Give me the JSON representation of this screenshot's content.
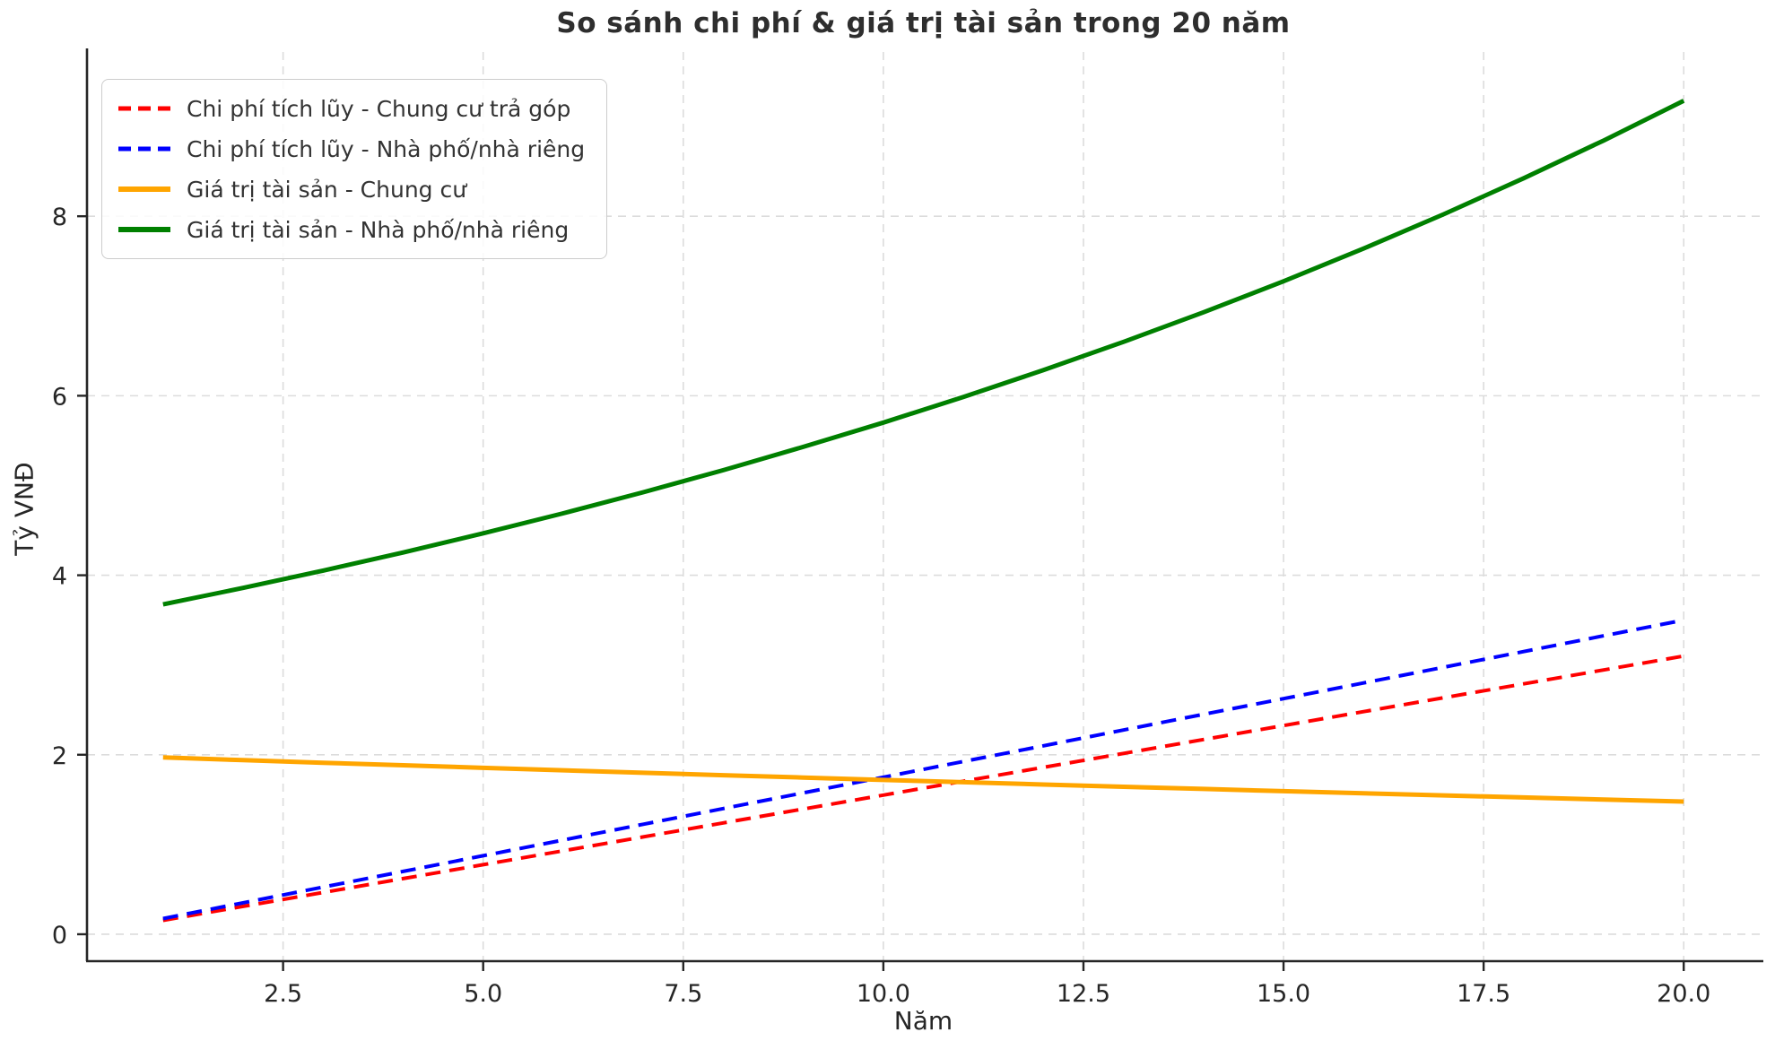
{
  "figure": {
    "background": "#ffffff",
    "grid_color": "#dcdcdc",
    "spine_color": "#262626",
    "tick_label_color": "#262626",
    "title_color": "#2e2e2e"
  },
  "chart_data": {
    "type": "line",
    "title": "So sánh chi phí & giá trị tài sản trong 20 năm",
    "xlabel": "Năm",
    "ylabel": "Tỷ VNĐ",
    "x": [
      1,
      2,
      3,
      4,
      5,
      6,
      7,
      8,
      9,
      10,
      11,
      12,
      13,
      14,
      15,
      16,
      17,
      18,
      19,
      20
    ],
    "xlim": [
      0.05,
      20.95
    ],
    "ylim": [
      -0.3,
      9.83
    ],
    "xticks": [
      2.5,
      5.0,
      7.5,
      10.0,
      12.5,
      15.0,
      17.5,
      20.0
    ],
    "xtick_labels": [
      "2.5",
      "5.0",
      "7.5",
      "10.0",
      "12.5",
      "15.0",
      "17.5",
      "20.0"
    ],
    "yticks": [
      0,
      2,
      4,
      6,
      8
    ],
    "ytick_labels": [
      "0",
      "2",
      "4",
      "6",
      "8"
    ],
    "grid": true,
    "legend_position": "upper-left",
    "series": [
      {
        "name": "Chi phí tích lũy - Chung cư trả góp",
        "color": "#ff0000",
        "style": "dashed",
        "line_width": 4,
        "values": [
          0.155,
          0.31,
          0.465,
          0.62,
          0.775,
          0.93,
          1.085,
          1.24,
          1.395,
          1.55,
          1.705,
          1.86,
          2.015,
          2.17,
          2.325,
          2.48,
          2.635,
          2.79,
          2.945,
          3.1
        ]
      },
      {
        "name": "Chi phí tích lũy - Nhà phố/nhà riêng",
        "color": "#0000ff",
        "style": "dashed",
        "line_width": 4,
        "values": [
          0.175,
          0.35,
          0.525,
          0.7,
          0.875,
          1.05,
          1.225,
          1.4,
          1.575,
          1.75,
          1.925,
          2.1,
          2.275,
          2.45,
          2.625,
          2.8,
          2.975,
          3.15,
          3.325,
          3.5
        ]
      },
      {
        "name": "Giá trị tài sản - Chung cư",
        "color": "#ffa500",
        "style": "solid",
        "line_width": 5,
        "values": [
          1.97,
          1.94,
          1.911,
          1.883,
          1.854,
          1.827,
          1.799,
          1.772,
          1.746,
          1.719,
          1.694,
          1.668,
          1.643,
          1.619,
          1.594,
          1.57,
          1.547,
          1.524,
          1.501,
          1.478
        ]
      },
      {
        "name": "Giá trị tài sản - Nhà phố/nhà riêng",
        "color": "#008000",
        "style": "solid",
        "line_width": 5,
        "values": [
          3.675,
          3.859,
          4.052,
          4.254,
          4.467,
          4.69,
          4.925,
          5.171,
          5.43,
          5.701,
          5.986,
          6.285,
          6.6,
          6.93,
          7.276,
          7.64,
          8.022,
          8.423,
          8.844,
          9.287
        ]
      }
    ]
  }
}
